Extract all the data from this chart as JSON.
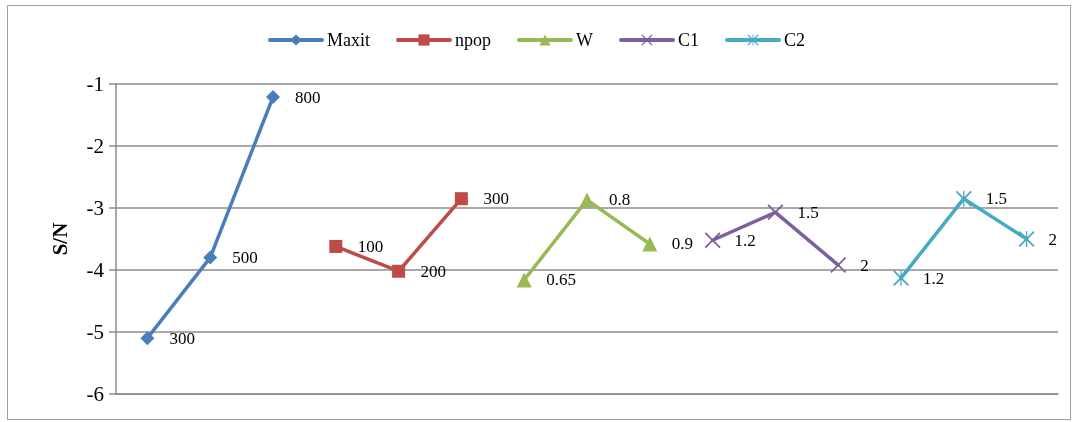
{
  "chart_data": {
    "type": "line",
    "ylabel": "S/N",
    "categories": [
      null,
      null,
      null,
      null,
      null,
      null,
      null,
      null,
      null,
      null,
      null,
      null,
      null,
      null,
      null
    ],
    "ylim": [
      -6,
      -1
    ],
    "yticks": [
      -6,
      -5,
      -4,
      -3,
      -2,
      -1
    ],
    "grid": "y",
    "legend": "top",
    "tick_labels": "y",
    "line_style": "solid",
    "series": [
      {
        "name": "Maxit",
        "color": "#4a7ebb",
        "marker": "diamond",
        "values": [
          -5.1,
          -3.8,
          -1.21,
          null,
          null,
          null,
          null,
          null,
          null,
          null,
          null,
          null,
          null,
          null,
          null
        ]
      },
      {
        "name": "npop",
        "color": "#be4b48",
        "marker": "square",
        "values": [
          null,
          null,
          null,
          -3.62,
          -4.02,
          -2.85,
          null,
          null,
          null,
          null,
          null,
          null,
          null,
          null,
          null
        ]
      },
      {
        "name": "W",
        "color": "#98b954",
        "marker": "triangle",
        "values": [
          null,
          null,
          null,
          null,
          null,
          null,
          -4.16,
          -2.87,
          -3.58,
          null,
          null,
          null,
          null,
          null,
          null
        ]
      },
      {
        "name": "C1",
        "color": "#7d5fa0",
        "marker": "cross",
        "values": [
          null,
          null,
          null,
          null,
          null,
          null,
          null,
          null,
          null,
          -3.52,
          -3.07,
          -3.92,
          null,
          null,
          null
        ]
      },
      {
        "name": "C2",
        "color": "#46aac5",
        "marker": "star",
        "values": [
          null,
          null,
          null,
          null,
          null,
          null,
          null,
          null,
          null,
          null,
          null,
          null,
          -4.13,
          -2.85,
          -3.5
        ]
      }
    ],
    "annotations": [
      "300",
      "500",
      "800",
      "100",
      "200",
      "300",
      "0.65",
      "0.8",
      "0.9",
      "1.2",
      "1.5",
      "2",
      "1.2",
      "1.5",
      "2"
    ]
  }
}
